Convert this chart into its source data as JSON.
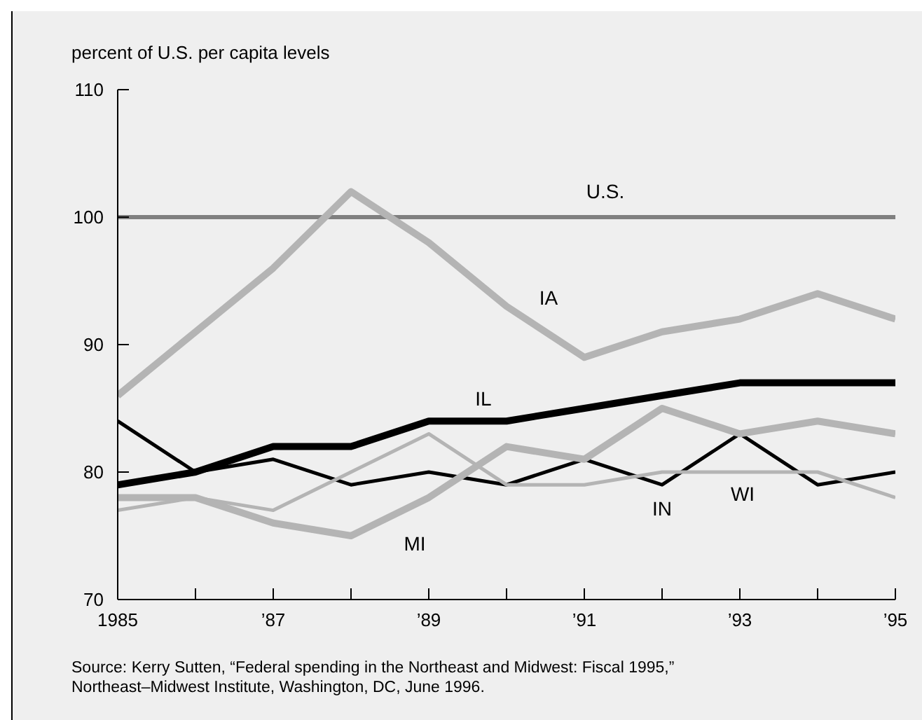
{
  "chart_data": {
    "type": "line",
    "ylabel": "percent of U.S. per capita levels",
    "x": [
      1985,
      1986,
      1987,
      1988,
      1989,
      1990,
      1991,
      1992,
      1993,
      1994,
      1995
    ],
    "xlim": [
      1985,
      1995
    ],
    "xticks": [
      {
        "value": 1985,
        "label": "1985"
      },
      {
        "value": 1986,
        "label": null
      },
      {
        "value": 1987,
        "label": "’87"
      },
      {
        "value": 1988,
        "label": null
      },
      {
        "value": 1989,
        "label": "’89"
      },
      {
        "value": 1990,
        "label": null
      },
      {
        "value": 1991,
        "label": "’91"
      },
      {
        "value": 1992,
        "label": null
      },
      {
        "value": 1993,
        "label": "’93"
      },
      {
        "value": 1994,
        "label": null
      },
      {
        "value": 1995,
        "label": "’95"
      }
    ],
    "ylim": [
      70,
      110
    ],
    "yticks": [
      70,
      80,
      90,
      100,
      110
    ],
    "marker": "none",
    "line_style": "solid",
    "series": [
      {
        "name": "U.S.",
        "color": "#808080",
        "values": [
          100,
          100,
          100,
          100,
          100,
          100,
          100,
          100,
          100,
          100,
          100
        ]
      },
      {
        "name": "IA",
        "color": "#b4b4b4",
        "values": [
          86,
          91,
          96,
          102,
          98,
          93,
          89,
          91,
          92,
          94,
          92
        ]
      },
      {
        "name": "IL",
        "color": "#000000",
        "values": [
          79,
          80,
          82,
          82,
          84,
          84,
          85,
          86,
          87,
          87,
          87
        ]
      },
      {
        "name": "IN",
        "color": "#000000",
        "values": [
          84,
          80,
          81,
          79,
          80,
          79,
          81,
          79,
          83,
          79,
          80
        ]
      },
      {
        "name": "WI",
        "color": "#b4b4b4",
        "values": [
          77,
          78,
          77,
          80,
          83,
          79,
          79,
          80,
          80,
          80,
          78
        ]
      },
      {
        "name": "MI",
        "color": "#b4b4b4",
        "values": [
          78,
          78,
          76,
          75,
          78,
          82,
          81,
          85,
          83,
          84,
          83
        ]
      }
    ],
    "annotations": [
      "Source: Kerry Sutten, “Federal spending in the Northeast and Midwest: Fiscal 1995,” Northeast–Midwest Institute, Washington, DC, June 1996."
    ]
  }
}
